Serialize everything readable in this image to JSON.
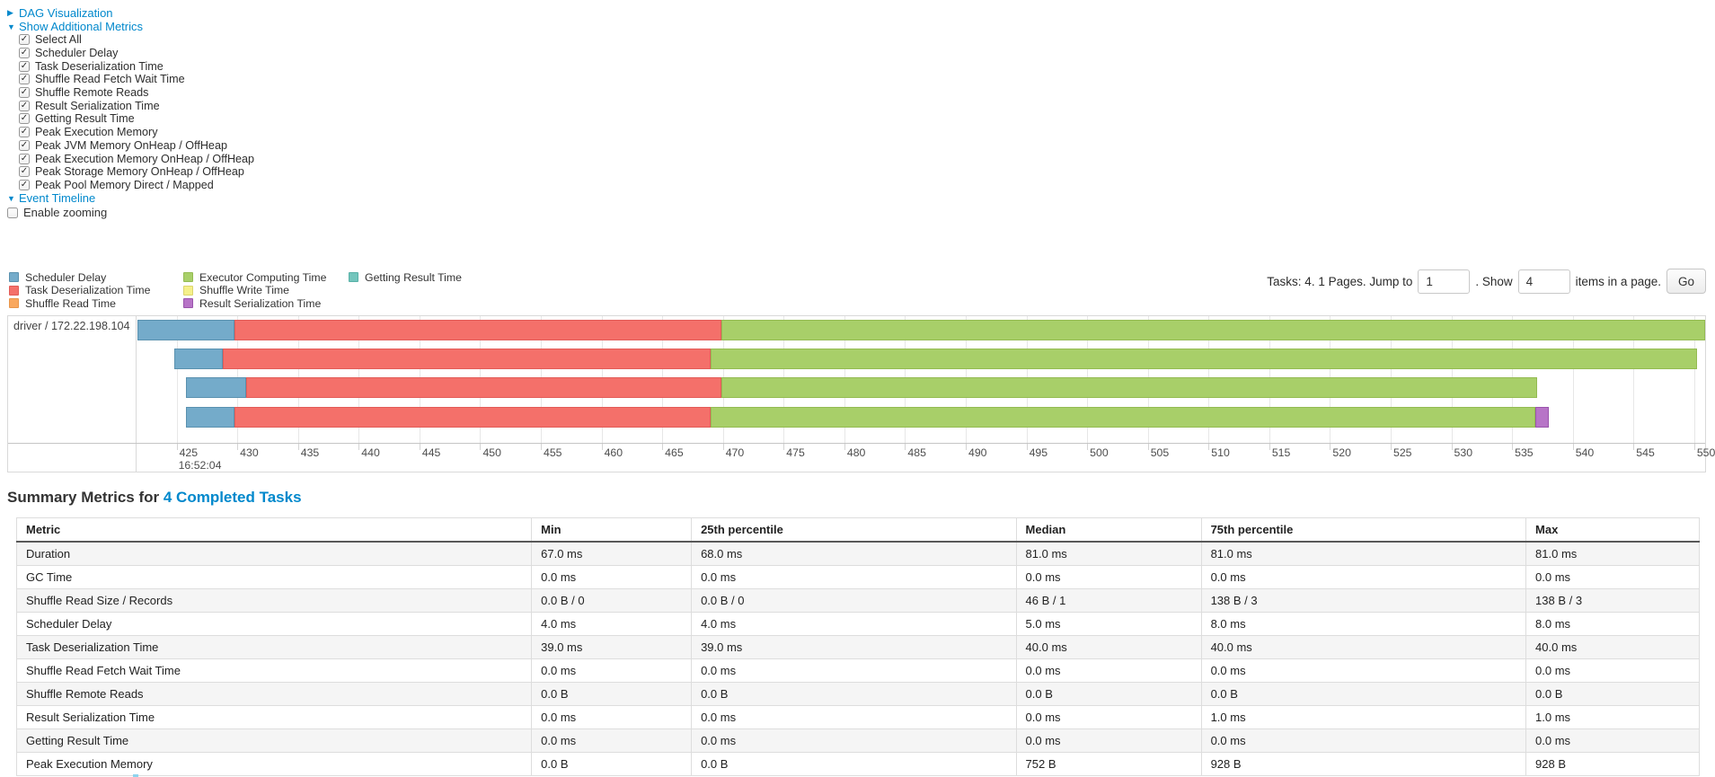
{
  "icons": {
    "caret_right": "▶",
    "caret_down": "▼",
    "check": "✓"
  },
  "controls": {
    "dag": {
      "label": "DAG Visualization"
    },
    "metrics": {
      "label": "Show Additional Metrics",
      "items": [
        {
          "label": "Select All",
          "checked": true
        },
        {
          "label": "Scheduler Delay",
          "checked": true
        },
        {
          "label": "Task Deserialization Time",
          "checked": true
        },
        {
          "label": "Shuffle Read Fetch Wait Time",
          "checked": true
        },
        {
          "label": "Shuffle Remote Reads",
          "checked": true
        },
        {
          "label": "Result Serialization Time",
          "checked": true
        },
        {
          "label": "Getting Result Time",
          "checked": true
        },
        {
          "label": "Peak Execution Memory",
          "checked": true
        },
        {
          "label": "Peak JVM Memory OnHeap / OffHeap",
          "checked": true
        },
        {
          "label": "Peak Execution Memory OnHeap / OffHeap",
          "checked": true
        },
        {
          "label": "Peak Storage Memory OnHeap / OffHeap",
          "checked": true
        },
        {
          "label": "Peak Pool Memory Direct / Mapped",
          "checked": true
        }
      ]
    },
    "event_timeline": {
      "label": "Event Timeline"
    },
    "enable_zooming": {
      "label": "Enable zooming",
      "checked": false
    }
  },
  "colors": {
    "scheduler-delay": {
      "fill": "#74ABCA",
      "border": "#5A91AF"
    },
    "task-deserialization": {
      "fill": "#F4706A",
      "border": "#E25C58"
    },
    "shuffle-read": {
      "fill": "#F9A85F",
      "border": "#E8964B"
    },
    "executor-computing": {
      "fill": "#A8CF69",
      "border": "#94BB52"
    },
    "shuffle-write": {
      "fill": "#F5F08A",
      "border": "#DBD56E"
    },
    "result-serialization": {
      "fill": "#B774C7",
      "border": "#9A54AC"
    },
    "getting-result": {
      "fill": "#73C5BC",
      "border": "#58B1A7"
    }
  },
  "legend": {
    "columns": [
      [
        {
          "key": "scheduler-delay",
          "label": "Scheduler Delay"
        },
        {
          "key": "task-deserialization",
          "label": "Task Deserialization Time"
        },
        {
          "key": "shuffle-read",
          "label": "Shuffle Read Time"
        }
      ],
      [
        {
          "key": "executor-computing",
          "label": "Executor Computing Time"
        },
        {
          "key": "shuffle-write",
          "label": "Shuffle Write Time"
        },
        {
          "key": "result-serialization",
          "label": "Result Serialization Time"
        }
      ],
      [
        {
          "key": "getting-result",
          "label": "Getting Result Time"
        }
      ]
    ]
  },
  "pagination": {
    "prefix": "Tasks: 4. 1 Pages. Jump to",
    "jump_value": "1",
    "mid": ". Show",
    "show_value": "4",
    "suffix": "items in a page.",
    "go_label": "Go"
  },
  "timeline": {
    "group_label": "driver / 172.22.198.104",
    "axis": {
      "start": 421.7,
      "end": 550.9,
      "first_tick": 425,
      "last_tick": 550,
      "tick_step": 5,
      "major_label": "16:52:04",
      "major_tick": 425
    },
    "tasks": [
      {
        "segments": [
          {
            "key": "scheduler-delay",
            "start": 421.8,
            "end": 429.8
          },
          {
            "key": "task-deserialization",
            "start": 429.8,
            "end": 469.9
          },
          {
            "key": "executor-computing",
            "start": 469.9,
            "end": 550.9
          }
        ]
      },
      {
        "segments": [
          {
            "key": "scheduler-delay",
            "start": 424.8,
            "end": 428.8
          },
          {
            "key": "task-deserialization",
            "start": 428.8,
            "end": 469.0
          },
          {
            "key": "executor-computing",
            "start": 469.0,
            "end": 550.2
          }
        ]
      },
      {
        "segments": [
          {
            "key": "scheduler-delay",
            "start": 425.8,
            "end": 430.75
          },
          {
            "key": "task-deserialization",
            "start": 430.75,
            "end": 469.9
          },
          {
            "key": "executor-computing",
            "start": 469.9,
            "end": 537.1
          }
        ]
      },
      {
        "segments": [
          {
            "key": "scheduler-delay",
            "start": 425.8,
            "end": 429.8
          },
          {
            "key": "task-deserialization",
            "start": 429.8,
            "end": 469.0
          },
          {
            "key": "executor-computing",
            "start": 469.0,
            "end": 536.95
          },
          {
            "key": "result-serialization",
            "start": 536.95,
            "end": 538.05
          }
        ]
      }
    ]
  },
  "summary": {
    "title_prefix": "Summary Metrics for",
    "title_link": "4 Completed Tasks",
    "table": {
      "columns": [
        "Metric",
        "Min",
        "25th percentile",
        "Median",
        "75th percentile",
        "Max"
      ],
      "rows": [
        {
          "metric": "Duration",
          "values": [
            "67.0 ms",
            "68.0 ms",
            "81.0 ms",
            "81.0 ms",
            "81.0 ms"
          ]
        },
        {
          "metric": "GC Time",
          "values": [
            "0.0 ms",
            "0.0 ms",
            "0.0 ms",
            "0.0 ms",
            "0.0 ms"
          ]
        },
        {
          "metric": "Shuffle Read Size / Records",
          "values": [
            "0.0 B / 0",
            "0.0 B / 0",
            "46 B / 1",
            "138 B / 3",
            "138 B / 3"
          ]
        },
        {
          "metric": "Scheduler Delay",
          "values": [
            "4.0 ms",
            "4.0 ms",
            "5.0 ms",
            "8.0 ms",
            "8.0 ms"
          ]
        },
        {
          "metric": "Task Deserialization Time",
          "values": [
            "39.0 ms",
            "39.0 ms",
            "40.0 ms",
            "40.0 ms",
            "40.0 ms"
          ]
        },
        {
          "metric": "Shuffle Read Fetch Wait Time",
          "values": [
            "0.0 ms",
            "0.0 ms",
            "0.0 ms",
            "0.0 ms",
            "0.0 ms"
          ]
        },
        {
          "metric": "Shuffle Remote Reads",
          "values": [
            "0.0 B",
            "0.0 B",
            "0.0 B",
            "0.0 B",
            "0.0 B"
          ]
        },
        {
          "metric": "Result Serialization Time",
          "values": [
            "0.0 ms",
            "0.0 ms",
            "0.0 ms",
            "1.0 ms",
            "1.0 ms"
          ]
        },
        {
          "metric": "Getting Result Time",
          "values": [
            "0.0 ms",
            "0.0 ms",
            "0.0 ms",
            "0.0 ms",
            "0.0 ms"
          ]
        },
        {
          "metric": "Peak Execution Memory",
          "values": [
            "0.0 B",
            "0.0 B",
            "752 B",
            "928 B",
            "928 B"
          ]
        }
      ]
    }
  }
}
